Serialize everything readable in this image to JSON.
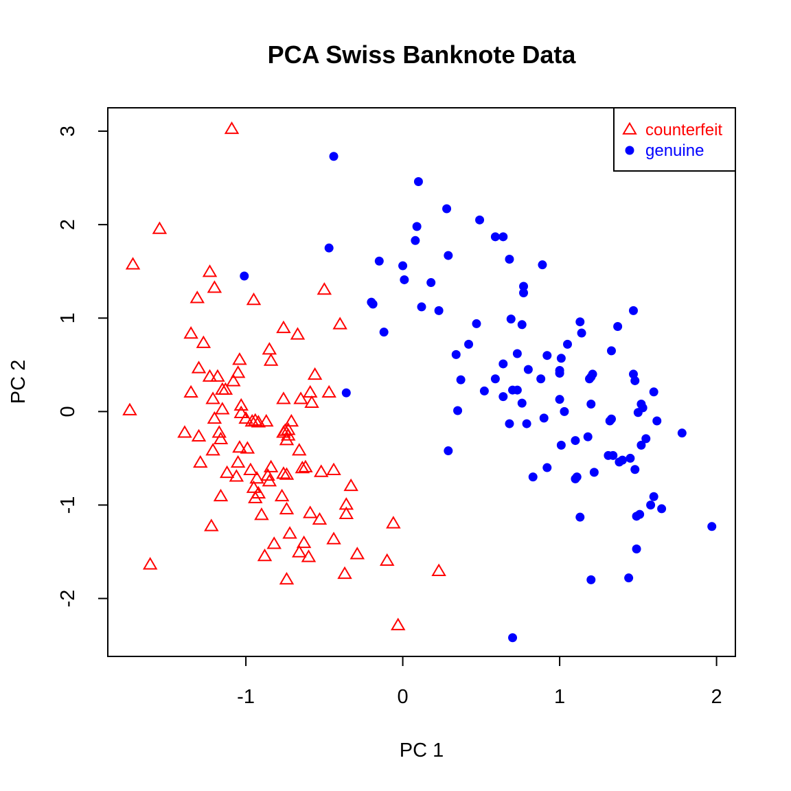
{
  "chart_data": {
    "type": "scatter",
    "title": "PCA Swiss Banknote Data",
    "xlabel": "PC 1",
    "ylabel": "PC 2",
    "xlim": [
      -1.88,
      2.12
    ],
    "ylim": [
      -2.62,
      3.25
    ],
    "x_ticks": [
      -1,
      0,
      1,
      2
    ],
    "y_ticks": [
      -2,
      -1,
      0,
      1,
      2,
      3
    ],
    "grid": false,
    "legend_position": "top-right",
    "series": [
      {
        "name": "counterfeit",
        "color": "#ff0000",
        "marker": "open-triangle",
        "points": [
          [
            -1.09,
            3.02
          ],
          [
            -1.55,
            1.95
          ],
          [
            -1.72,
            1.57
          ],
          [
            -1.23,
            1.49
          ],
          [
            -1.2,
            1.32
          ],
          [
            -1.31,
            1.21
          ],
          [
            -0.95,
            1.19
          ],
          [
            -0.5,
            1.3
          ],
          [
            -0.4,
            0.93
          ],
          [
            -0.76,
            0.89
          ],
          [
            -0.67,
            0.82
          ],
          [
            -1.35,
            0.83
          ],
          [
            -1.27,
            0.73
          ],
          [
            -0.85,
            0.66
          ],
          [
            -0.84,
            0.54
          ],
          [
            -1.04,
            0.55
          ],
          [
            -1.3,
            0.46
          ],
          [
            -1.18,
            0.37
          ],
          [
            -1.23,
            0.37
          ],
          [
            -1.05,
            0.41
          ],
          [
            -1.08,
            0.32
          ],
          [
            -1.15,
            0.23
          ],
          [
            -1.13,
            0.23
          ],
          [
            -1.35,
            0.2
          ],
          [
            -1.21,
            0.13
          ],
          [
            -0.56,
            0.39
          ],
          [
            -0.47,
            0.2
          ],
          [
            -0.59,
            0.2
          ],
          [
            -0.65,
            0.13
          ],
          [
            -0.76,
            0.13
          ],
          [
            -0.58,
            0.09
          ],
          [
            -1.74,
            0.01
          ],
          [
            -1.03,
            0.06
          ],
          [
            -1.15,
            0.02
          ],
          [
            -1.03,
            -0.02
          ],
          [
            -1.2,
            -0.08
          ],
          [
            -1.0,
            -0.08
          ],
          [
            -0.71,
            -0.11
          ],
          [
            -0.87,
            -0.11
          ],
          [
            -0.94,
            -0.1
          ],
          [
            -0.96,
            -0.11
          ],
          [
            -0.92,
            -0.12
          ],
          [
            -0.73,
            -0.2
          ],
          [
            -0.75,
            -0.21
          ],
          [
            -1.39,
            -0.23
          ],
          [
            -1.17,
            -0.23
          ],
          [
            -0.73,
            -0.26
          ],
          [
            -1.3,
            -0.27
          ],
          [
            -1.16,
            -0.3
          ],
          [
            -0.76,
            -0.23
          ],
          [
            -0.74,
            -0.31
          ],
          [
            -1.04,
            -0.39
          ],
          [
            -0.99,
            -0.4
          ],
          [
            -1.21,
            -0.42
          ],
          [
            -0.66,
            -0.42
          ],
          [
            -1.05,
            -0.55
          ],
          [
            -1.29,
            -0.55
          ],
          [
            -0.84,
            -0.6
          ],
          [
            -0.64,
            -0.61
          ],
          [
            -0.62,
            -0.6
          ],
          [
            -0.44,
            -0.63
          ],
          [
            -0.52,
            -0.65
          ],
          [
            -1.12,
            -0.66
          ],
          [
            -0.97,
            -0.63
          ],
          [
            -1.06,
            -0.7
          ],
          [
            -0.86,
            -0.69
          ],
          [
            -0.76,
            -0.67
          ],
          [
            -0.74,
            -0.68
          ],
          [
            -0.93,
            -0.72
          ],
          [
            -0.85,
            -0.75
          ],
          [
            -0.33,
            -0.8
          ],
          [
            -0.95,
            -0.82
          ],
          [
            -0.92,
            -0.88
          ],
          [
            -1.16,
            -0.91
          ],
          [
            -0.94,
            -0.93
          ],
          [
            -0.77,
            -0.91
          ],
          [
            -0.36,
            -1.0
          ],
          [
            -0.74,
            -1.05
          ],
          [
            -0.59,
            -1.09
          ],
          [
            -0.36,
            -1.1
          ],
          [
            -0.9,
            -1.11
          ],
          [
            -0.53,
            -1.16
          ],
          [
            -1.22,
            -1.23
          ],
          [
            -0.06,
            -1.2
          ],
          [
            -0.72,
            -1.31
          ],
          [
            -0.44,
            -1.37
          ],
          [
            -0.82,
            -1.42
          ],
          [
            -0.63,
            -1.41
          ],
          [
            -0.66,
            -1.51
          ],
          [
            -0.88,
            -1.55
          ],
          [
            -0.6,
            -1.56
          ],
          [
            -0.29,
            -1.53
          ],
          [
            -0.1,
            -1.6
          ],
          [
            -0.37,
            -1.74
          ],
          [
            0.23,
            -1.71
          ],
          [
            -1.61,
            -1.64
          ],
          [
            -0.74,
            -1.8
          ],
          [
            -0.03,
            -2.29
          ]
        ]
      },
      {
        "name": "genuine",
        "color": "#0000ff",
        "marker": "filled-circle",
        "points": [
          [
            -0.44,
            2.73
          ],
          [
            0.1,
            2.46
          ],
          [
            0.28,
            2.17
          ],
          [
            0.49,
            2.05
          ],
          [
            0.09,
            1.98
          ],
          [
            0.59,
            1.87
          ],
          [
            0.64,
            1.87
          ],
          [
            0.08,
            1.83
          ],
          [
            -0.47,
            1.75
          ],
          [
            0.29,
            1.67
          ],
          [
            0.68,
            1.63
          ],
          [
            -0.15,
            1.61
          ],
          [
            0.89,
            1.57
          ],
          [
            0.0,
            1.56
          ],
          [
            -1.01,
            1.45
          ],
          [
            0.01,
            1.41
          ],
          [
            0.18,
            1.38
          ],
          [
            0.77,
            1.34
          ],
          [
            0.77,
            1.27
          ],
          [
            -0.2,
            1.17
          ],
          [
            -0.19,
            1.15
          ],
          [
            0.12,
            1.12
          ],
          [
            0.23,
            1.08
          ],
          [
            1.47,
            1.08
          ],
          [
            0.69,
            0.99
          ],
          [
            1.13,
            0.96
          ],
          [
            0.47,
            0.94
          ],
          [
            0.76,
            0.93
          ],
          [
            1.37,
            0.91
          ],
          [
            -0.12,
            0.85
          ],
          [
            1.14,
            0.84
          ],
          [
            0.42,
            0.72
          ],
          [
            1.05,
            0.72
          ],
          [
            1.33,
            0.65
          ],
          [
            0.34,
            0.61
          ],
          [
            0.73,
            0.62
          ],
          [
            0.92,
            0.6
          ],
          [
            1.01,
            0.57
          ],
          [
            0.64,
            0.51
          ],
          [
            0.8,
            0.45
          ],
          [
            1.0,
            0.44
          ],
          [
            1.0,
            0.41
          ],
          [
            1.21,
            0.4
          ],
          [
            1.47,
            0.4
          ],
          [
            1.2,
            0.37
          ],
          [
            1.19,
            0.35
          ],
          [
            0.59,
            0.35
          ],
          [
            0.88,
            0.35
          ],
          [
            0.37,
            0.34
          ],
          [
            1.48,
            0.33
          ],
          [
            0.7,
            0.23
          ],
          [
            0.73,
            0.23
          ],
          [
            0.52,
            0.22
          ],
          [
            1.6,
            0.21
          ],
          [
            -0.36,
            0.2
          ],
          [
            0.64,
            0.16
          ],
          [
            1.0,
            0.13
          ],
          [
            1.2,
            0.08
          ],
          [
            0.76,
            0.09
          ],
          [
            1.52,
            0.08
          ],
          [
            1.53,
            0.04
          ],
          [
            0.35,
            0.01
          ],
          [
            1.03,
            0.0
          ],
          [
            1.5,
            -0.01
          ],
          [
            1.33,
            -0.08
          ],
          [
            1.32,
            -0.1
          ],
          [
            0.9,
            -0.07
          ],
          [
            1.62,
            -0.1
          ],
          [
            0.68,
            -0.13
          ],
          [
            0.79,
            -0.13
          ],
          [
            1.78,
            -0.23
          ],
          [
            1.55,
            -0.29
          ],
          [
            1.18,
            -0.27
          ],
          [
            1.1,
            -0.31
          ],
          [
            1.01,
            -0.36
          ],
          [
            1.52,
            -0.36
          ],
          [
            0.29,
            -0.42
          ],
          [
            1.31,
            -0.47
          ],
          [
            1.34,
            -0.47
          ],
          [
            1.4,
            -0.52
          ],
          [
            1.45,
            -0.5
          ],
          [
            1.38,
            -0.54
          ],
          [
            0.92,
            -0.6
          ],
          [
            1.48,
            -0.62
          ],
          [
            1.22,
            -0.65
          ],
          [
            0.83,
            -0.7
          ],
          [
            1.11,
            -0.7
          ],
          [
            1.1,
            -0.72
          ],
          [
            1.6,
            -0.91
          ],
          [
            1.58,
            -1.0
          ],
          [
            1.65,
            -1.04
          ],
          [
            1.51,
            -1.1
          ],
          [
            1.49,
            -1.12
          ],
          [
            1.13,
            -1.13
          ],
          [
            1.97,
            -1.23
          ],
          [
            1.49,
            -1.47
          ],
          [
            1.44,
            -1.78
          ],
          [
            1.2,
            -1.8
          ],
          [
            0.7,
            -2.42
          ]
        ]
      }
    ]
  }
}
